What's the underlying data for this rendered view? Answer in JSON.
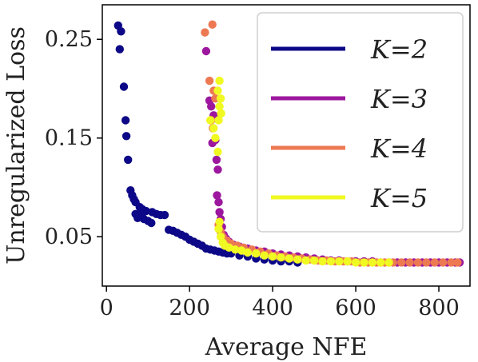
{
  "chart_data": {
    "type": "scatter",
    "xlabel": "Average NFE",
    "ylabel": "Unregularized Loss",
    "xlim": [
      -10,
      875
    ],
    "ylim": [
      0.0,
      0.285
    ],
    "xticks": [
      0,
      200,
      400,
      600,
      800
    ],
    "yticks": [
      0.05,
      0.15,
      0.25
    ],
    "xtick_labels": [
      "0",
      "200",
      "400",
      "600",
      "800"
    ],
    "ytick_labels": [
      "0.05",
      "0.15",
      "0.25"
    ],
    "grid": false,
    "legend": {
      "placement": "top-right",
      "entries": [
        {
          "label": "K=2",
          "color": "#0d0887"
        },
        {
          "label": "K=3",
          "color": "#9c179e"
        },
        {
          "label": "K=4",
          "color": "#ed7953"
        },
        {
          "label": "K=5",
          "color": "#f0f921"
        }
      ]
    },
    "series": [
      {
        "color": "#0d0887",
        "points": [
          [
            28,
            0.264
          ],
          [
            35,
            0.258
          ],
          [
            32,
            0.24
          ],
          [
            42,
            0.202
          ],
          [
            46,
            0.168
          ],
          [
            48,
            0.152
          ],
          [
            52,
            0.128
          ],
          [
            58,
            0.097
          ],
          [
            62,
            0.092
          ],
          [
            66,
            0.088
          ],
          [
            70,
            0.085
          ],
          [
            80,
            0.08
          ],
          [
            86,
            0.078
          ],
          [
            95,
            0.076
          ],
          [
            110,
            0.075
          ],
          [
            120,
            0.073
          ],
          [
            130,
            0.072
          ],
          [
            140,
            0.072
          ],
          [
            70,
            0.073
          ],
          [
            78,
            0.072
          ],
          [
            85,
            0.071
          ],
          [
            75,
            0.069
          ],
          [
            90,
            0.068
          ],
          [
            100,
            0.066
          ],
          [
            108,
            0.064
          ],
          [
            150,
            0.057
          ],
          [
            160,
            0.056
          ],
          [
            170,
            0.054
          ],
          [
            180,
            0.052
          ],
          [
            190,
            0.05
          ],
          [
            200,
            0.047
          ],
          [
            210,
            0.045
          ],
          [
            220,
            0.043
          ],
          [
            230,
            0.041
          ],
          [
            240,
            0.038
          ],
          [
            250,
            0.037
          ],
          [
            260,
            0.036
          ],
          [
            270,
            0.035
          ],
          [
            280,
            0.034
          ],
          [
            290,
            0.033
          ],
          [
            300,
            0.033
          ],
          [
            320,
            0.031
          ],
          [
            340,
            0.03
          ],
          [
            360,
            0.028
          ],
          [
            380,
            0.027
          ],
          [
            400,
            0.026
          ],
          [
            420,
            0.025
          ],
          [
            440,
            0.025
          ],
          [
            460,
            0.024
          ]
        ]
      },
      {
        "color": "#9c179e",
        "points": [
          [
            240,
            0.238
          ],
          [
            248,
            0.188
          ],
          [
            252,
            0.182
          ],
          [
            258,
            0.173
          ],
          [
            262,
            0.148
          ],
          [
            255,
            0.145
          ],
          [
            265,
            0.128
          ],
          [
            268,
            0.118
          ],
          [
            266,
            0.092
          ],
          [
            270,
            0.085
          ],
          [
            272,
            0.075
          ],
          [
            275,
            0.068
          ],
          [
            278,
            0.06
          ],
          [
            282,
            0.052
          ],
          [
            288,
            0.048
          ],
          [
            295,
            0.045
          ],
          [
            305,
            0.042
          ],
          [
            320,
            0.04
          ],
          [
            340,
            0.038
          ],
          [
            360,
            0.036
          ],
          [
            380,
            0.035
          ],
          [
            400,
            0.033
          ],
          [
            420,
            0.032
          ],
          [
            440,
            0.031
          ],
          [
            460,
            0.03
          ],
          [
            480,
            0.029
          ],
          [
            500,
            0.028
          ],
          [
            520,
            0.027
          ],
          [
            540,
            0.026
          ],
          [
            560,
            0.026
          ],
          [
            580,
            0.025
          ],
          [
            600,
            0.025
          ],
          [
            620,
            0.025
          ],
          [
            640,
            0.025
          ],
          [
            660,
            0.024
          ],
          [
            680,
            0.024
          ],
          [
            700,
            0.024
          ],
          [
            720,
            0.024
          ],
          [
            740,
            0.024
          ],
          [
            760,
            0.024
          ],
          [
            780,
            0.024
          ],
          [
            800,
            0.024
          ],
          [
            820,
            0.024
          ],
          [
            840,
            0.024
          ],
          [
            850,
            0.024
          ]
        ]
      },
      {
        "color": "#ed7953",
        "points": [
          [
            255,
            0.265
          ],
          [
            237,
            0.257
          ],
          [
            248,
            0.208
          ],
          [
            258,
            0.198
          ],
          [
            262,
            0.19
          ],
          [
            252,
            0.168
          ],
          [
            256,
            0.16
          ],
          [
            270,
            0.062
          ],
          [
            275,
            0.055
          ],
          [
            280,
            0.05
          ],
          [
            290,
            0.046
          ],
          [
            300,
            0.043
          ],
          [
            315,
            0.041
          ],
          [
            330,
            0.039
          ],
          [
            350,
            0.037
          ],
          [
            370,
            0.035
          ],
          [
            390,
            0.033
          ],
          [
            410,
            0.031
          ],
          [
            430,
            0.03
          ],
          [
            450,
            0.029
          ],
          [
            470,
            0.028
          ],
          [
            490,
            0.027
          ],
          [
            510,
            0.026
          ],
          [
            530,
            0.026
          ],
          [
            550,
            0.025
          ],
          [
            570,
            0.025
          ],
          [
            590,
            0.025
          ],
          [
            610,
            0.024
          ],
          [
            630,
            0.024
          ],
          [
            650,
            0.024
          ],
          [
            670,
            0.024
          ],
          [
            690,
            0.024
          ],
          [
            710,
            0.024
          ],
          [
            730,
            0.024
          ],
          [
            750,
            0.024
          ],
          [
            770,
            0.024
          ],
          [
            790,
            0.024
          ],
          [
            810,
            0.024
          ],
          [
            830,
            0.024
          ],
          [
            845,
            0.024
          ]
        ]
      },
      {
        "color": "#f0f921",
        "points": [
          [
            272,
            0.208
          ],
          [
            268,
            0.198
          ],
          [
            275,
            0.19
          ],
          [
            272,
            0.182
          ],
          [
            276,
            0.175
          ],
          [
            270,
            0.168
          ],
          [
            250,
            0.168
          ],
          [
            258,
            0.16
          ],
          [
            262,
            0.15
          ],
          [
            268,
            0.136
          ],
          [
            272,
            0.065
          ],
          [
            270,
            0.058
          ],
          [
            275,
            0.05
          ],
          [
            280,
            0.044
          ],
          [
            285,
            0.041
          ],
          [
            295,
            0.039
          ],
          [
            310,
            0.037
          ],
          [
            325,
            0.036
          ],
          [
            340,
            0.034
          ],
          [
            360,
            0.033
          ],
          [
            380,
            0.031
          ],
          [
            400,
            0.03
          ],
          [
            420,
            0.029
          ],
          [
            440,
            0.028
          ],
          [
            460,
            0.027
          ],
          [
            480,
            0.026
          ],
          [
            500,
            0.026
          ],
          [
            520,
            0.025
          ],
          [
            540,
            0.025
          ],
          [
            560,
            0.025
          ],
          [
            580,
            0.025
          ],
          [
            600,
            0.024
          ],
          [
            620,
            0.024
          ],
          [
            640,
            0.024
          ],
          [
            660,
            0.024
          ],
          [
            680,
            0.024
          ]
        ]
      }
    ]
  }
}
